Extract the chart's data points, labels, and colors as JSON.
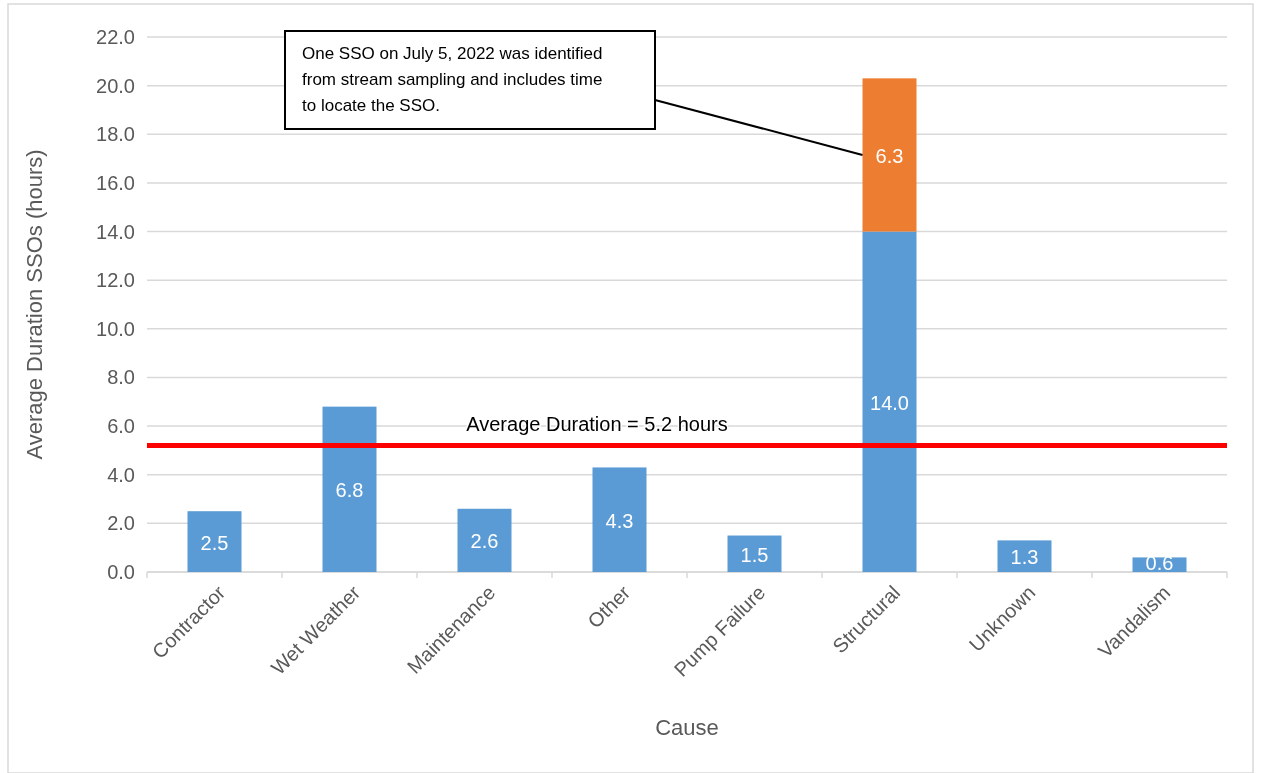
{
  "chart_data": {
    "type": "bar",
    "stacked": true,
    "xlabel": "Cause",
    "ylabel": "Average Duration SSOs (hours)",
    "categories": [
      "Contractor",
      "Wet Weather",
      "Maintenance",
      "Other",
      "Pump Failure",
      "Structural",
      "Unknown",
      "Vandalism"
    ],
    "series": [
      {
        "color": "#5b9bd5",
        "values": [
          2.5,
          6.8,
          2.6,
          4.3,
          1.5,
          14.0,
          1.3,
          0.6
        ],
        "value_labels": [
          "2.5",
          "6.8",
          "2.6",
          "4.3",
          "1.5",
          "14.0",
          "1.3",
          "0.6"
        ]
      },
      {
        "color": "#ed7d31",
        "values": [
          null,
          null,
          null,
          null,
          null,
          6.3,
          null,
          null
        ],
        "value_labels": [
          null,
          null,
          null,
          null,
          null,
          "6.3",
          null,
          null
        ]
      }
    ],
    "ylim": [
      0,
      22
    ],
    "yticks": [
      {
        "value": 0,
        "label": "0.0"
      },
      {
        "value": 2,
        "label": "2.0"
      },
      {
        "value": 4,
        "label": "4.0"
      },
      {
        "value": 6,
        "label": "6.0"
      },
      {
        "value": 8,
        "label": "8.0"
      },
      {
        "value": 10,
        "label": "10.0"
      },
      {
        "value": 12,
        "label": "12.0"
      },
      {
        "value": 14,
        "label": "14.0"
      },
      {
        "value": 16,
        "label": "16.0"
      },
      {
        "value": 18,
        "label": "18.0"
      },
      {
        "value": 20,
        "label": "20.0"
      },
      {
        "value": 22,
        "label": "22.0"
      }
    ],
    "grid": "y",
    "ref_lines": [
      {
        "axis": "y",
        "value": 5.2,
        "label": "Average Duration = 5.2 hours",
        "color": "#ff0000"
      }
    ],
    "annotations": [
      "One SSO on July 5, 2022 was identified from stream sampling and includes time to locate the SSO."
    ]
  }
}
